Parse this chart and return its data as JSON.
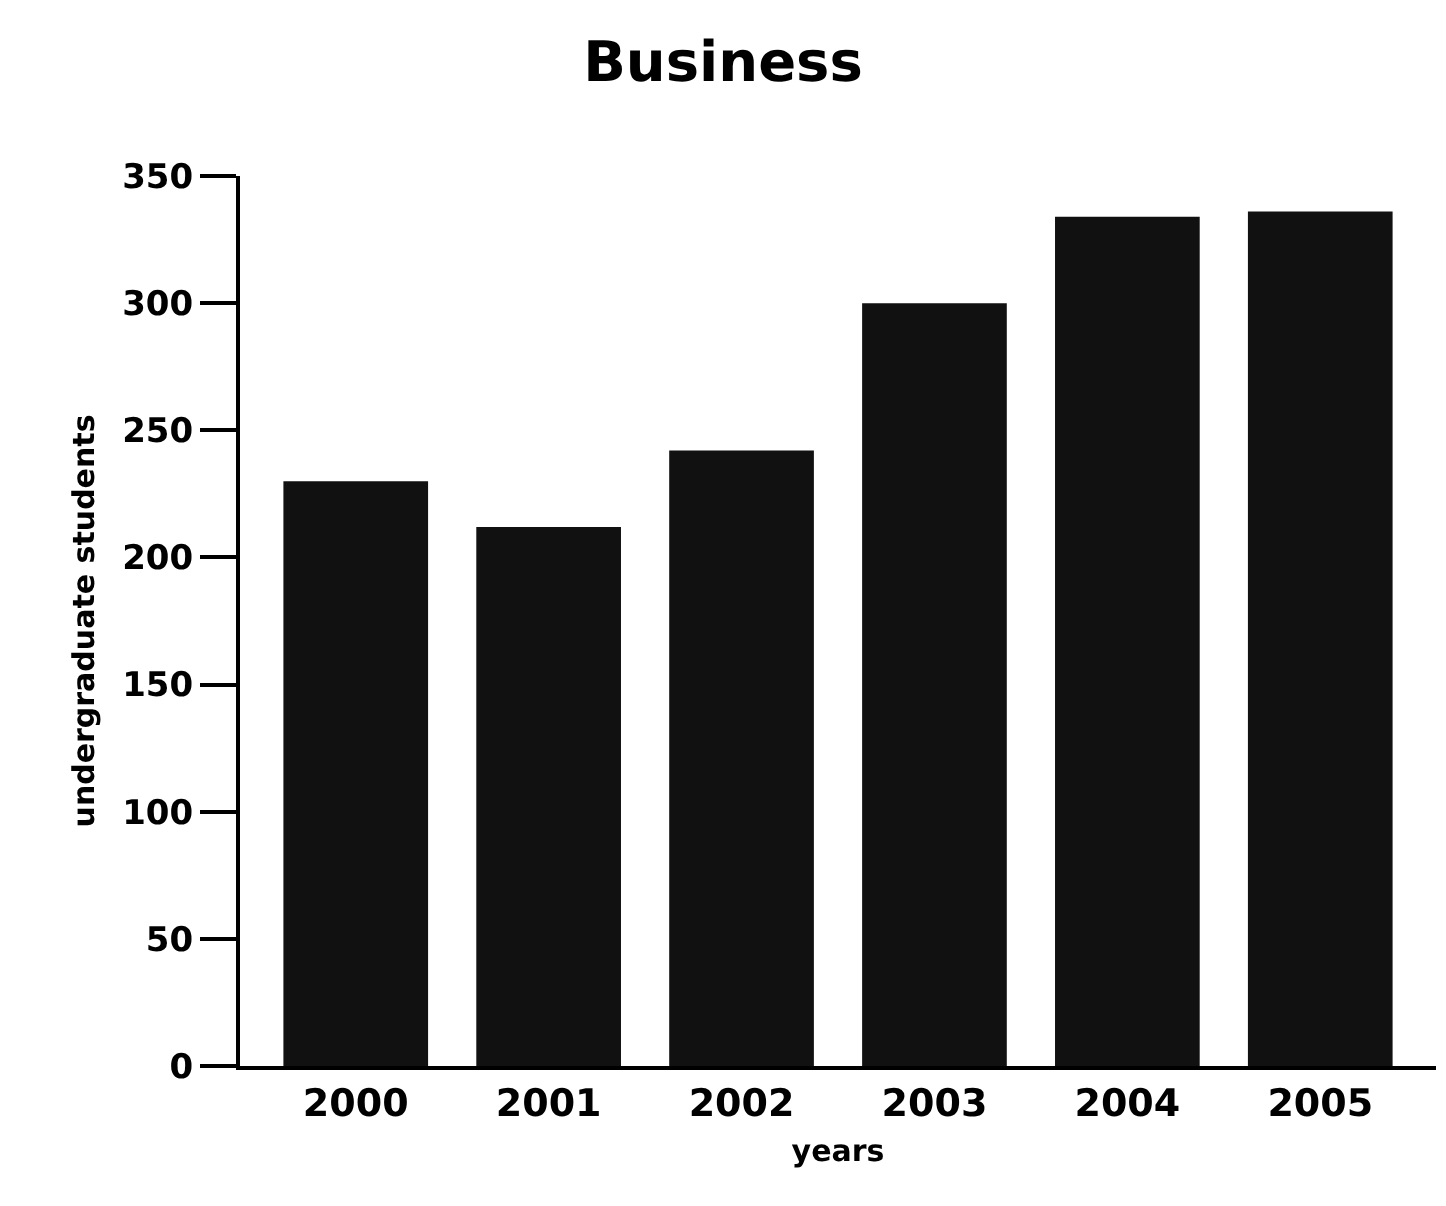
{
  "chart_data": {
    "type": "bar",
    "title": "Business",
    "xlabel": "years",
    "ylabel": "undergraduate students",
    "categories": [
      "2000",
      "2001",
      "2002",
      "2003",
      "2004",
      "2005"
    ],
    "values": [
      230,
      212,
      242,
      300,
      334,
      336
    ],
    "color": "#111111",
    "ylim": [
      0,
      350
    ],
    "yticks": [
      0,
      50,
      100,
      150,
      200,
      250,
      300,
      350
    ],
    "grid": false
  }
}
